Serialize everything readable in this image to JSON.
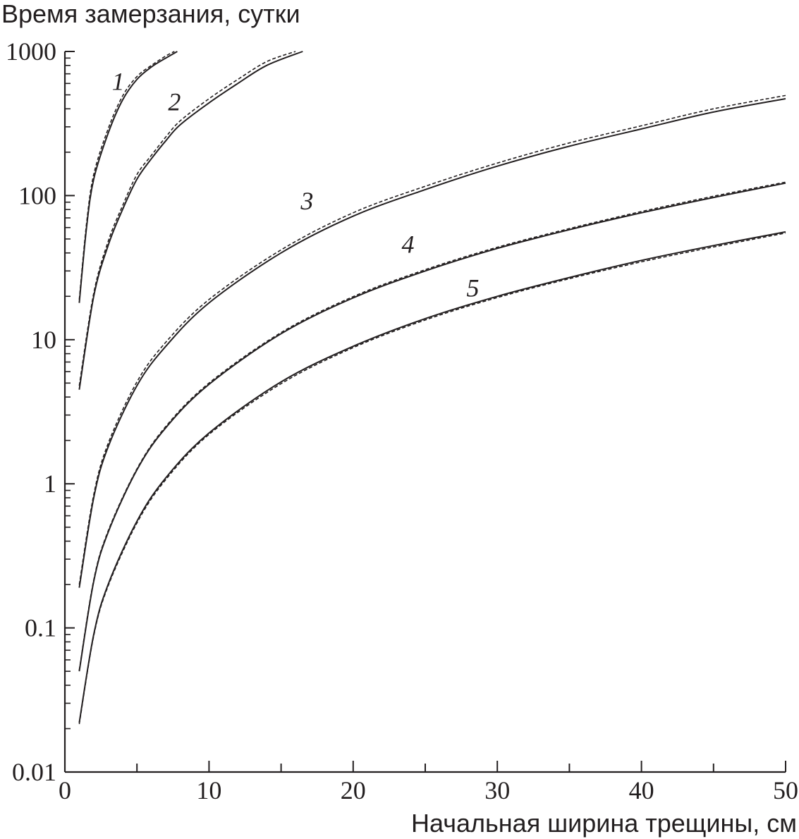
{
  "chart_data": {
    "type": "line",
    "title": "Время замерзания, сутки",
    "xlabel": "Начальная ширина трещины, см",
    "ylabel": "Время замерзания, сутки",
    "xlim": [
      0,
      50
    ],
    "ylim": [
      0.01,
      1000
    ],
    "yscale": "log",
    "x_ticks": [
      "0",
      "10",
      "20",
      "30",
      "40",
      "50"
    ],
    "y_ticks": [
      "0.01",
      "0.1",
      "1",
      "10",
      "100",
      "1000"
    ],
    "grid": false,
    "line_color": "#231f20",
    "line_styles": [
      "solid",
      "dashed"
    ],
    "series": [
      {
        "label": "1",
        "solid": [
          [
            1,
            18
          ],
          [
            1.5,
            60
          ],
          [
            2,
            130
          ],
          [
            3,
            270
          ],
          [
            4,
            460
          ],
          [
            5,
            640
          ],
          [
            6,
            780
          ],
          [
            7,
            900
          ],
          [
            7.8,
            1000
          ]
        ],
        "dashed": [
          [
            1,
            19
          ],
          [
            1.5,
            64
          ],
          [
            2,
            140
          ],
          [
            3,
            290
          ],
          [
            4,
            490
          ],
          [
            5,
            670
          ],
          [
            6,
            800
          ],
          [
            7,
            930
          ],
          [
            7.6,
            1000
          ]
        ]
      },
      {
        "label": "2",
        "solid": [
          [
            1,
            4.5
          ],
          [
            2,
            20
          ],
          [
            3,
            45
          ],
          [
            4,
            80
          ],
          [
            5,
            130
          ],
          [
            6,
            180
          ],
          [
            7,
            240
          ],
          [
            8,
            310
          ],
          [
            10,
            440
          ],
          [
            12,
            600
          ],
          [
            14,
            800
          ],
          [
            16.5,
            1000
          ]
        ],
        "dashed": [
          [
            1,
            4.8
          ],
          [
            2,
            21
          ],
          [
            3,
            48
          ],
          [
            4,
            85
          ],
          [
            5,
            140
          ],
          [
            6,
            190
          ],
          [
            7,
            255
          ],
          [
            8,
            330
          ],
          [
            10,
            470
          ],
          [
            12,
            640
          ],
          [
            14,
            850
          ],
          [
            16,
            1000
          ]
        ]
      },
      {
        "label": "3",
        "solid": [
          [
            1,
            0.19
          ],
          [
            2,
            0.8
          ],
          [
            3,
            1.8
          ],
          [
            5,
            4.8
          ],
          [
            7,
            9
          ],
          [
            10,
            18
          ],
          [
            15,
            40
          ],
          [
            20,
            72
          ],
          [
            25,
            110
          ],
          [
            30,
            160
          ],
          [
            35,
            220
          ],
          [
            40,
            290
          ],
          [
            45,
            380
          ],
          [
            50,
            470
          ]
        ],
        "dashed": [
          [
            1,
            0.2
          ],
          [
            2,
            0.84
          ],
          [
            3,
            1.9
          ],
          [
            5,
            5.1
          ],
          [
            7,
            9.6
          ],
          [
            10,
            19
          ],
          [
            15,
            42
          ],
          [
            20,
            76
          ],
          [
            25,
            116
          ],
          [
            30,
            168
          ],
          [
            35,
            232
          ],
          [
            40,
            305
          ],
          [
            45,
            400
          ],
          [
            50,
            495
          ]
        ]
      },
      {
        "label": "4",
        "solid": [
          [
            1,
            0.05
          ],
          [
            2,
            0.21
          ],
          [
            3,
            0.46
          ],
          [
            5,
            1.25
          ],
          [
            7,
            2.45
          ],
          [
            10,
            4.9
          ],
          [
            15,
            11
          ],
          [
            20,
            19.5
          ],
          [
            25,
            30
          ],
          [
            30,
            43
          ],
          [
            35,
            58
          ],
          [
            40,
            76
          ],
          [
            45,
            97
          ],
          [
            50,
            122
          ]
        ],
        "dashed": [
          [
            1,
            0.051
          ],
          [
            2,
            0.215
          ],
          [
            3,
            0.47
          ],
          [
            5,
            1.27
          ],
          [
            7,
            2.5
          ],
          [
            10,
            5
          ],
          [
            15,
            11.2
          ],
          [
            20,
            19.9
          ],
          [
            25,
            30.6
          ],
          [
            30,
            43.8
          ],
          [
            35,
            59
          ],
          [
            40,
            77.5
          ],
          [
            45,
            99
          ],
          [
            50,
            124
          ]
        ]
      },
      {
        "label": "5",
        "solid": [
          [
            1,
            0.022
          ],
          [
            2,
            0.09
          ],
          [
            3,
            0.2
          ],
          [
            5,
            0.55
          ],
          [
            7,
            1.1
          ],
          [
            10,
            2.25
          ],
          [
            15,
            5.1
          ],
          [
            20,
            9
          ],
          [
            25,
            14
          ],
          [
            30,
            20
          ],
          [
            35,
            27
          ],
          [
            40,
            35.5
          ],
          [
            45,
            45
          ],
          [
            50,
            56
          ]
        ],
        "dashed": [
          [
            1,
            0.0215
          ],
          [
            2,
            0.088
          ],
          [
            3,
            0.195
          ],
          [
            5,
            0.535
          ],
          [
            7,
            1.07
          ],
          [
            10,
            2.2
          ],
          [
            15,
            4.95
          ],
          [
            20,
            8.8
          ],
          [
            25,
            13.7
          ],
          [
            30,
            19.6
          ],
          [
            35,
            26.5
          ],
          [
            40,
            34.7
          ],
          [
            45,
            44
          ],
          [
            50,
            55
          ]
        ]
      }
    ]
  }
}
